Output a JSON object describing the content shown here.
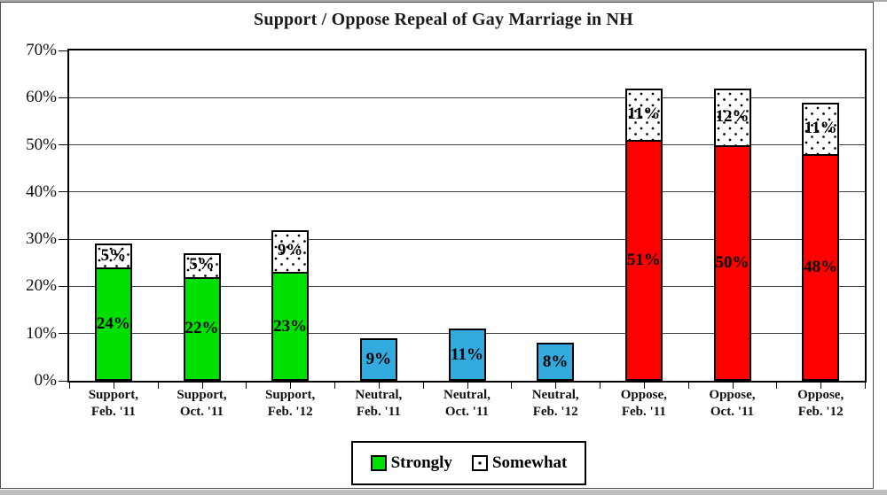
{
  "chart_data": {
    "type": "bar",
    "stacked": true,
    "title": "Support / Oppose Repeal of Gay Marriage in NH",
    "categories": [
      "Support,\nFeb. '11",
      "Support,\nOct. '11",
      "Support,\nFeb. '12",
      "Neutral,\nFeb. '11",
      "Neutral,\nOct. '11",
      "Neutral,\nFeb. '12",
      "Oppose,\nFeb. '11",
      "Oppose,\nOct. '11",
      "Oppose,\nFeb. '12"
    ],
    "series": [
      {
        "name": "Strongly",
        "values": [
          24,
          22,
          23,
          9,
          11,
          8,
          51,
          50,
          48
        ]
      },
      {
        "name": "Somewhat",
        "values": [
          5,
          5,
          9,
          0,
          0,
          0,
          11,
          12,
          11
        ]
      }
    ],
    "data_labels": {
      "strongly": [
        "24%",
        "22%",
        "23%",
        "9%",
        "11%",
        "8%",
        "51%",
        "50%",
        "48%"
      ],
      "somewhat": [
        "5%",
        "5%",
        "9%",
        "",
        "",
        "",
        "11%",
        "12%",
        "11%"
      ]
    },
    "strongly_colors": [
      "#00e000",
      "#00e000",
      "#00e000",
      "#33aadd",
      "#33aadd",
      "#33aadd",
      "#fe0000",
      "#fe0000",
      "#fe0000"
    ],
    "somewhat_fill": {
      "background": "#ffffff",
      "pattern": "black-dots"
    },
    "ylim": [
      0,
      70
    ],
    "yticks": [
      "0%",
      "10%",
      "20%",
      "30%",
      "40%",
      "50%",
      "60%",
      "70%"
    ],
    "grid": true,
    "legend_position": "bottom"
  },
  "legend": {
    "items": [
      {
        "label": "Strongly",
        "swatch": "green"
      },
      {
        "label": "Somewhat",
        "swatch": "dotted"
      }
    ]
  }
}
